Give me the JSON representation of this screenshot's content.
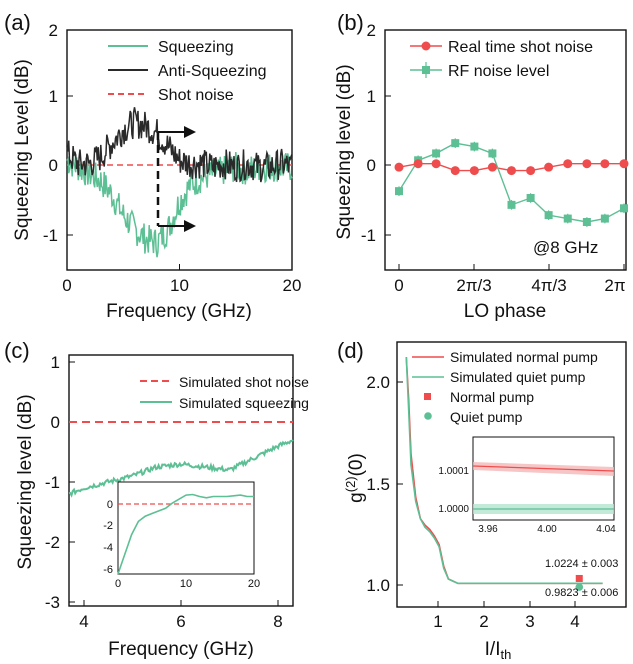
{
  "colors": {
    "squeeze": "#5dbf94",
    "antisqueeze": "#2a2a2a",
    "shot": "#ef4d4d",
    "axis": "#111111"
  },
  "chart_data": [
    {
      "panel": "(a)",
      "type": "line",
      "xlabel": "Frequency (GHz)",
      "ylabel": "Squeezing Level (dB)",
      "xlim": [
        0,
        20
      ],
      "ylim": [
        -1.5,
        2
      ],
      "xticks": [
        "0",
        "10",
        "20"
      ],
      "yticks": [
        "-1",
        "0",
        "1",
        "2"
      ],
      "legend": [
        "Squeezing",
        "Anti-Squeezing",
        "Shot noise"
      ],
      "legend_position": "top-right",
      "series": [
        {
          "name": "Squeezing",
          "x": [
            0,
            1,
            2,
            3,
            4,
            5,
            6,
            7,
            8,
            9,
            10,
            11,
            12,
            13,
            14,
            15,
            16,
            17,
            18,
            19,
            20
          ],
          "y": [
            0.1,
            0.0,
            -0.1,
            -0.2,
            -0.4,
            -0.7,
            -0.9,
            -1.05,
            -1.1,
            -0.9,
            -0.5,
            -0.25,
            -0.15,
            -0.1,
            -0.05,
            0.0,
            -0.05,
            0.0,
            0.0,
            0.0,
            0.0
          ]
        },
        {
          "name": "Anti-Squeezing",
          "x": [
            0,
            1,
            2,
            3,
            4,
            5,
            6,
            7,
            8,
            9,
            10,
            11,
            12,
            13,
            14,
            15,
            16,
            17,
            18,
            19,
            20
          ],
          "y": [
            0.2,
            0.05,
            0.05,
            0.15,
            0.35,
            0.55,
            0.65,
            0.6,
            0.5,
            0.3,
            0.1,
            0.05,
            0.05,
            0.0,
            0.05,
            0.0,
            0.05,
            0.0,
            0.0,
            0.05,
            0.0
          ]
        },
        {
          "name": "Shot noise",
          "x": [
            0,
            20
          ],
          "y": [
            0,
            0
          ]
        }
      ]
    },
    {
      "panel": "(b)",
      "type": "line",
      "xlabel": "LO phase",
      "ylabel": "Squeezing level (dB)",
      "ylim": [
        -1.5,
        2
      ],
      "xticks": [
        "0",
        "2π/3",
        "4π/3",
        "2π"
      ],
      "yticks": [
        "-1",
        "0",
        "1",
        "2"
      ],
      "annotation": "@8 GHz",
      "legend": [
        "Real time shot noise",
        "RF noise level"
      ],
      "legend_position": "top-right",
      "series": [
        {
          "name": "Real time shot noise",
          "x": [
            0,
            0.17,
            0.33,
            0.5,
            0.67,
            0.83,
            1.0,
            1.17,
            1.33,
            1.5,
            1.67,
            1.83,
            2.0
          ],
          "y": [
            0.0,
            0.05,
            0.05,
            -0.05,
            -0.05,
            0.0,
            -0.05,
            -0.05,
            0.0,
            0.05,
            0.05,
            0.05,
            0.05
          ]
        },
        {
          "name": "RF noise level",
          "x": [
            0,
            0.17,
            0.33,
            0.5,
            0.67,
            0.83,
            1.0,
            1.17,
            1.33,
            1.5,
            1.67,
            1.83,
            2.0
          ],
          "y": [
            -0.35,
            0.1,
            0.2,
            0.35,
            0.3,
            0.2,
            -0.55,
            -0.45,
            -0.7,
            -0.75,
            -0.8,
            -0.75,
            -0.6
          ]
        }
      ]
    },
    {
      "panel": "(c)",
      "type": "line",
      "xlabel": "Frequency (GHz)",
      "ylabel": "Squeezing level (dB)",
      "xlim": [
        3.7,
        8.3
      ],
      "ylim": [
        -3,
        1
      ],
      "xticks": [
        "4",
        "6",
        "8"
      ],
      "yticks": [
        "-3",
        "-2",
        "-1",
        "0",
        "1"
      ],
      "legend": [
        "Simulated shot noise",
        "Simulated squeezing"
      ],
      "legend_position": "top-right",
      "series": [
        {
          "name": "Simulated shot noise",
          "x": [
            3.7,
            8.3
          ],
          "y": [
            0,
            0
          ]
        },
        {
          "name": "Simulated squeezing",
          "x": [
            3.7,
            4.0,
            4.5,
            5.0,
            5.5,
            6.0,
            6.5,
            7.0,
            7.5,
            8.0,
            8.3
          ],
          "y": [
            -1.2,
            -1.1,
            -1.0,
            -0.9,
            -0.75,
            -0.7,
            -0.75,
            -0.8,
            -0.6,
            -0.4,
            -0.3
          ]
        }
      ],
      "inset": {
        "xlim": [
          0,
          20
        ],
        "ylim": [
          -6,
          1
        ],
        "xticks": [
          "0",
          "10",
          "20"
        ],
        "yticks": [
          "-6",
          "-4",
          "-2",
          "0"
        ],
        "series": [
          {
            "name": "Simulated shot noise",
            "x": [
              0,
              20
            ],
            "y": [
              0,
              0
            ]
          },
          {
            "name": "Simulated squeezing",
            "x": [
              0,
              1,
              2,
              3,
              4,
              5,
              6,
              7,
              8,
              9,
              10,
              11,
              12,
              13,
              14,
              15,
              16,
              17,
              18,
              19,
              20
            ],
            "y": [
              -6,
              -4.5,
              -3,
              -2,
              -1.6,
              -1.4,
              -1.2,
              -1.0,
              -0.6,
              -0.3,
              0,
              0.05,
              -0.1,
              -0.2,
              -0.1,
              -0.1,
              -0.1,
              -0.05,
              0,
              -0.1,
              -0.1
            ]
          }
        ]
      }
    },
    {
      "panel": "(d)",
      "type": "line",
      "xlabel": "I/I",
      "xlabel_sub": "th",
      "ylabel": "g(2)(0)",
      "xlim": [
        0.2,
        4.7
      ],
      "ylim": [
        0.85,
        2.15
      ],
      "xticks": [
        "1",
        "2",
        "3",
        "4"
      ],
      "yticks": [
        "1.0",
        "1.5",
        "2.0"
      ],
      "legend": [
        "Simulated normal pump",
        "Simulated quiet pump",
        "Normal pump",
        "Quiet pump"
      ],
      "legend_position": "top-right",
      "series": [
        {
          "name": "Simulated normal pump",
          "x": [
            0.3,
            0.35,
            0.4,
            0.5,
            0.6,
            0.7,
            0.8,
            0.9,
            1.0,
            1.1,
            1.2,
            1.4,
            2.0,
            3.0,
            4.0,
            4.5
          ],
          "y": [
            2.05,
            1.85,
            1.6,
            1.4,
            1.3,
            1.27,
            1.25,
            1.22,
            1.18,
            1.08,
            1.02,
            1.0,
            1.0,
            1.0,
            1.0,
            1.0
          ]
        },
        {
          "name": "Simulated quiet pump",
          "x": [
            0.3,
            0.35,
            0.4,
            0.5,
            0.6,
            0.7,
            0.8,
            0.9,
            1.0,
            1.1,
            1.2,
            1.4,
            2.0,
            3.0,
            4.0,
            4.5
          ],
          "y": [
            2.05,
            1.8,
            1.55,
            1.38,
            1.3,
            1.26,
            1.24,
            1.21,
            1.17,
            1.07,
            1.02,
            1.0,
            1.0,
            1.0,
            1.0,
            1.0
          ]
        },
        {
          "name": "Normal pump",
          "x": [
            4.0
          ],
          "y": [
            1.0224
          ]
        },
        {
          "name": "Quiet pump",
          "x": [
            4.0
          ],
          "y": [
            0.9823
          ]
        }
      ],
      "annotations": [
        "1.0224 ± 0.003",
        "0.9823 ± 0.006"
      ],
      "inset": {
        "xlim": [
          3.95,
          4.045
        ],
        "ylim": [
          0.99993,
          1.00013
        ],
        "xticks": [
          "3.96",
          "4.00",
          "4.04"
        ],
        "yticks": [
          "1.0000",
          "1.0001"
        ],
        "series": [
          {
            "name": "Simulated normal pump",
            "x": [
              3.95,
              4.045
            ],
            "y": [
              1.000105,
              1.000096
            ]
          },
          {
            "name": "Simulated quiet pump",
            "x": [
              3.95,
              4.045
            ],
            "y": [
              0.999985,
              0.999985
            ]
          }
        ]
      }
    }
  ]
}
